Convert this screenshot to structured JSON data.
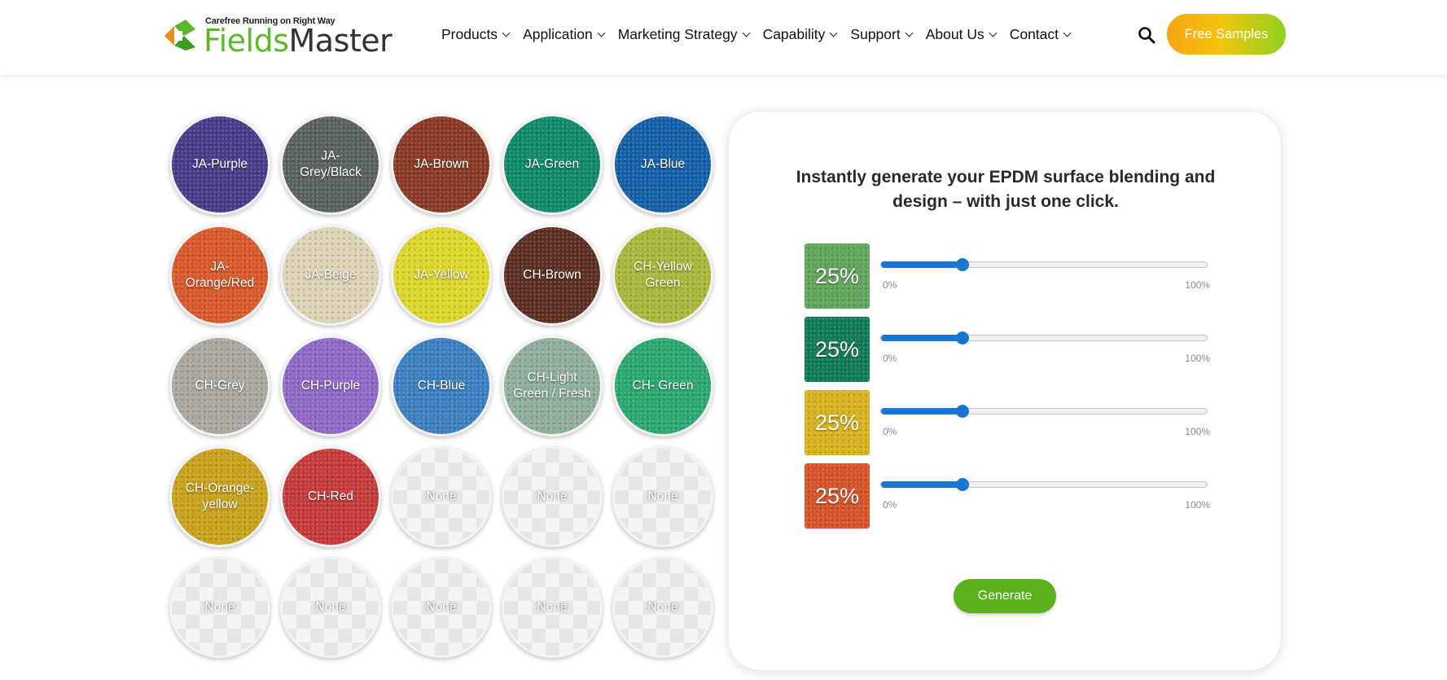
{
  "header": {
    "logo": {
      "tagline": "Carefree Running on Right Way",
      "name_part1": "Fields",
      "name_part2": "Master"
    },
    "nav": [
      {
        "label": "Products"
      },
      {
        "label": "Application"
      },
      {
        "label": "Marketing Strategy"
      },
      {
        "label": "Capability"
      },
      {
        "label": "Support"
      },
      {
        "label": "About Us"
      },
      {
        "label": "Contact"
      }
    ],
    "search_icon": "search-icon",
    "cta_label": "Free Samples"
  },
  "swatches": [
    {
      "label": "JA-Purple",
      "color": "#4a3b8a"
    },
    {
      "label": "JA-Grey/Black",
      "color": "#5a6261"
    },
    {
      "label": "JA-Brown",
      "color": "#8a3a24"
    },
    {
      "label": "JA-Green",
      "color": "#0f8a6a"
    },
    {
      "label": "JA-Blue",
      "color": "#1460a8"
    },
    {
      "label": "JA-Orange/Red",
      "color": "#d9592a"
    },
    {
      "label": "JA-Beige",
      "color": "#ddd3b6"
    },
    {
      "label": "JA-Yellow",
      "color": "#ddd62a"
    },
    {
      "label": "CH-Brown",
      "color": "#5c2e22"
    },
    {
      "label": "CH-Yellow Green",
      "color": "#a9b83a"
    },
    {
      "label": "CH-Grey",
      "color": "#a9a7a0"
    },
    {
      "label": "CH-Purple",
      "color": "#8f68c8"
    },
    {
      "label": "CH-Blue",
      "color": "#3b7fc0"
    },
    {
      "label": "CH-Light Green / Fresh",
      "color": "#8fae9c"
    },
    {
      "label": "CH- Green",
      "color": "#2aa870"
    },
    {
      "label": "CH-Orange-yellow",
      "color": "#c9a21c"
    },
    {
      "label": "CH-Red",
      "color": "#c63a3a"
    },
    {
      "label": "None",
      "color": ""
    },
    {
      "label": "None",
      "color": ""
    },
    {
      "label": "None",
      "color": ""
    },
    {
      "label": "None",
      "color": ""
    },
    {
      "label": "None",
      "color": ""
    },
    {
      "label": "None",
      "color": ""
    },
    {
      "label": "None",
      "color": ""
    },
    {
      "label": "None",
      "color": ""
    }
  ],
  "panel": {
    "title": "Instantly generate your EPDM surface blending and design – with just one click.",
    "mixes": [
      {
        "percent_label": "25%",
        "value": 25,
        "color": "#5fa55a",
        "min_label": "0%",
        "max_label": "100%"
      },
      {
        "percent_label": "25%",
        "value": 25,
        "color": "#0f7a55",
        "min_label": "0%",
        "max_label": "100%"
      },
      {
        "percent_label": "25%",
        "value": 25,
        "color": "#d8b21e",
        "min_label": "0%",
        "max_label": "100%"
      },
      {
        "percent_label": "25%",
        "value": 25,
        "color": "#d7532a",
        "min_label": "0%",
        "max_label": "100%"
      }
    ],
    "generate_label": "Generate"
  }
}
